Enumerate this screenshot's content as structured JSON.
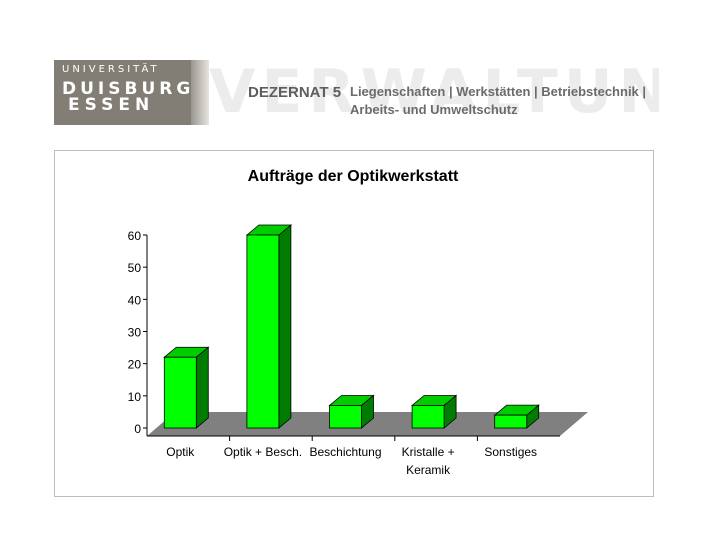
{
  "header": {
    "logo_line1": "UNIVERSITÄT",
    "logo_line2": "DUISBURG",
    "logo_line3": "ESSEN",
    "dezernat": "DEZERNAT 5",
    "department_line1": "Liegenschaften | Werkstätten | Betriebstechnik |",
    "department_line2": "Arbeits- und Umweltschutz"
  },
  "chart_data": {
    "type": "bar",
    "title": "Aufträge der Optikwerkstatt",
    "categories": [
      "Optik",
      "Optik + Besch.",
      "Beschichtung",
      "Kristalle + Keramik",
      "Sonstiges"
    ],
    "category_lines": [
      [
        "Optik"
      ],
      [
        "Optik + Besch."
      ],
      [
        "Beschichtung"
      ],
      [
        "Kristalle +",
        "Keramik"
      ],
      [
        "Sonstiges"
      ]
    ],
    "values": [
      22,
      60,
      7,
      7,
      4
    ],
    "ylim": [
      0,
      60
    ],
    "yticks": [
      0,
      10,
      20,
      30,
      40,
      50,
      60
    ],
    "xlabel": "",
    "ylabel": "",
    "grid": false,
    "legend": "none",
    "colors": {
      "bar_front": "#00ff00",
      "bar_side": "#007c00",
      "bar_top": "#00cc00",
      "floor": "#808080"
    }
  }
}
